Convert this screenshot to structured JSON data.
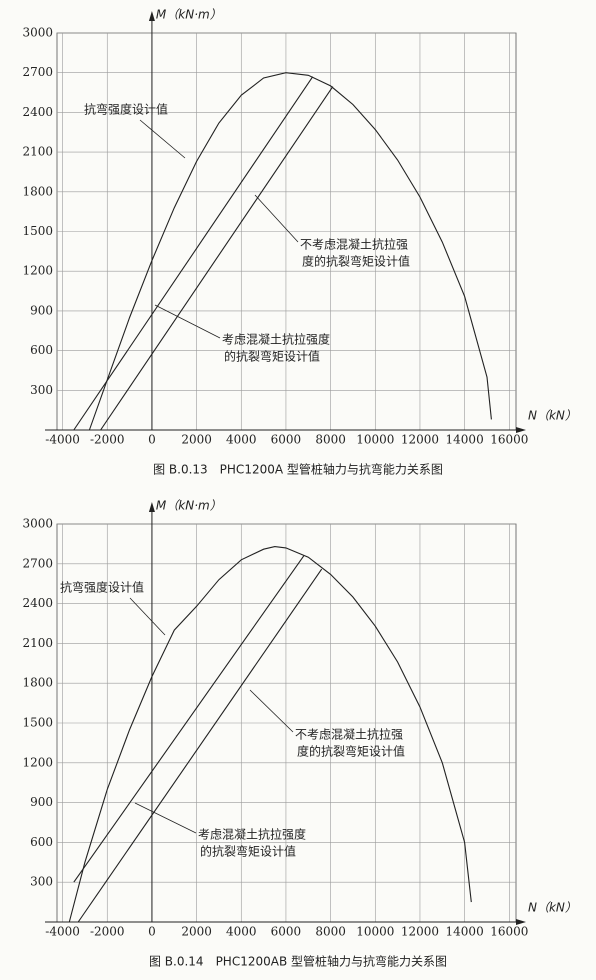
{
  "chart_data": [
    {
      "type": "line",
      "title": "图 B.0.13　PHC1200A 型管桩轴力与抗弯能力关系图",
      "x_label": "N（kN）",
      "y_label": "M（kN·m）",
      "xlim": [
        -4250,
        16300
      ],
      "ylim": [
        0,
        3000
      ],
      "xticks": [
        -4000,
        -2000,
        0,
        2000,
        4000,
        6000,
        8000,
        10000,
        12000,
        14000,
        16000
      ],
      "yticks": [
        300,
        600,
        900,
        1200,
        1500,
        1800,
        2100,
        2400,
        2700,
        3000
      ],
      "grid": true,
      "series": [
        {
          "color": "#222",
          "x": [
            -2800,
            -2000,
            -1000,
            0,
            1000,
            2000,
            3000,
            4000,
            5000,
            6000,
            7000,
            8000,
            9000,
            10000,
            11000,
            12000,
            13000,
            14000,
            15000,
            15200
          ],
          "values": [
            0,
            380,
            850,
            1280,
            1680,
            2030,
            2320,
            2530,
            2660,
            2700,
            2680,
            2600,
            2460,
            2270,
            2040,
            1760,
            1420,
            1010,
            400,
            80
          ]
        },
        {
          "color": "#222",
          "x": [
            -3500,
            7200
          ],
          "values": [
            0,
            2670
          ]
        },
        {
          "color": "#222",
          "x": [
            -2300,
            8100
          ],
          "values": [
            0,
            2595
          ]
        }
      ],
      "annotations": [
        {
          "lines": [
            "抗弯强度设计值"
          ]
        },
        {
          "lines": [
            "不考虑混凝土抗拉强",
            "度的抗裂弯矩设计值"
          ]
        },
        {
          "lines": [
            "考虑混凝土抗拉强度",
            "的抗裂弯矩设计值"
          ]
        }
      ]
    },
    {
      "type": "line",
      "title": "图 B.0.14　PHC1200AB 型管桩轴力与抗弯能力关系图",
      "x_label": "N（kN）",
      "y_label": "M（kN·m）",
      "xlim": [
        -4250,
        16300
      ],
      "ylim": [
        0,
        3000
      ],
      "xticks": [
        -4000,
        -2000,
        0,
        2000,
        4000,
        6000,
        8000,
        10000,
        12000,
        14000,
        16000
      ],
      "yticks": [
        300,
        600,
        900,
        1200,
        1500,
        1800,
        2100,
        2400,
        2700,
        3000
      ],
      "grid": true,
      "series": [
        {
          "color": "#222",
          "x": [
            -3700,
            -3000,
            -2000,
            -1000,
            0,
            1000,
            2000,
            3000,
            4000,
            5000,
            5500,
            6000,
            7000,
            8000,
            9000,
            10000,
            11000,
            12000,
            13000,
            14000,
            14300
          ],
          "values": [
            0,
            450,
            1000,
            1450,
            1850,
            2200,
            2380,
            2580,
            2730,
            2810,
            2830,
            2820,
            2750,
            2620,
            2450,
            2230,
            1960,
            1620,
            1200,
            600,
            150
          ]
        },
        {
          "color": "#222",
          "x": [
            -3500,
            6800
          ],
          "values": [
            300,
            2760
          ]
        },
        {
          "color": "#222",
          "x": [
            -3300,
            7600
          ],
          "values": [
            0,
            2660
          ]
        }
      ],
      "annotations": [
        {
          "lines": [
            "抗弯强度设计值"
          ]
        },
        {
          "lines": [
            "不考虑混凝土抗拉强",
            "度的抗裂弯矩设计值"
          ]
        },
        {
          "lines": [
            "考虑混凝土抗拉强度",
            "的抗裂弯矩设计值"
          ]
        }
      ]
    }
  ]
}
